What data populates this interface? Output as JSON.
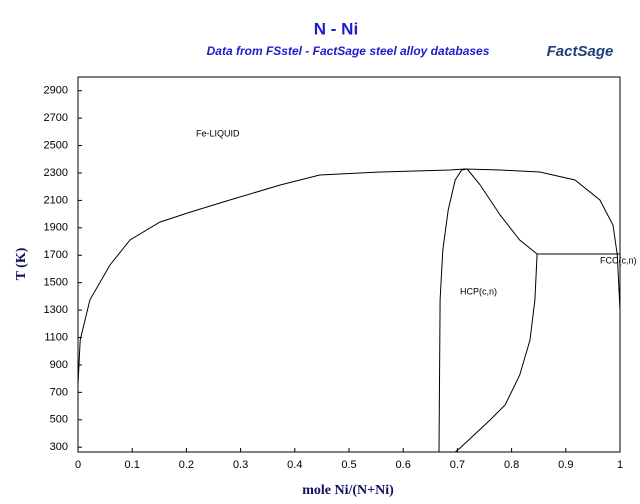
{
  "chart_data": {
    "type": "line",
    "title": "N - Ni",
    "subtitle": "Data from FSstel - FactSage steel alloy databases",
    "logo": "FactSage",
    "x_label": "mole Ni/(N+Ni)",
    "y_label": "T (K)",
    "xlim": [
      0,
      1
    ],
    "ylim": [
      265,
      3000
    ],
    "xticks": [
      0,
      0.1,
      0.2,
      0.3,
      0.4,
      0.5,
      0.6,
      0.7,
      0.8,
      0.9,
      1
    ],
    "yticks": [
      300,
      500,
      700,
      900,
      1100,
      1300,
      1500,
      1700,
      1900,
      2100,
      2300,
      2500,
      2700,
      2900
    ],
    "annotations": [
      "Fe-LIQUID",
      "HCP(c,n)",
      "FCC(c,n)"
    ],
    "series": [
      {
        "color": "#000000",
        "x": [
          0,
          0.004,
          0.022,
          0.059,
          0.096,
          0.151,
          0.207,
          0.28,
          0.373,
          0.446,
          0.557,
          0.686,
          0.714,
          0.779,
          0.852,
          0.917,
          0.963,
          0.987,
          0.995,
          1
        ],
        "values": [
          760,
          1082,
          1374,
          1629,
          1811,
          1942,
          2015,
          2103,
          2212,
          2285,
          2307,
          2322,
          2329,
          2322,
          2307,
          2249,
          2103,
          1920,
          1702,
          1300
        ]
      },
      {
        "color": "#000000",
        "x": [
          0.666,
          0.668,
          0.673,
          0.683,
          0.696,
          0.708,
          0.718
        ],
        "values": [
          265,
          1374,
          1738,
          2030,
          2249,
          2322,
          2329
        ]
      },
      {
        "color": "#000000",
        "x": [
          0.718,
          0.742,
          0.779,
          0.815,
          0.847
        ],
        "values": [
          2329,
          2212,
          1993,
          1811,
          1709
        ]
      },
      {
        "color": "#000000",
        "x": [
          0.847,
          1
        ],
        "values": [
          1709,
          1709
        ]
      },
      {
        "color": "#000000",
        "x": [
          0.847,
          0.843,
          0.834,
          0.815,
          0.788,
          0.76,
          0.705,
          0.696
        ],
        "values": [
          1709,
          1374,
          1082,
          826,
          608,
          498,
          294,
          265
        ]
      }
    ]
  }
}
